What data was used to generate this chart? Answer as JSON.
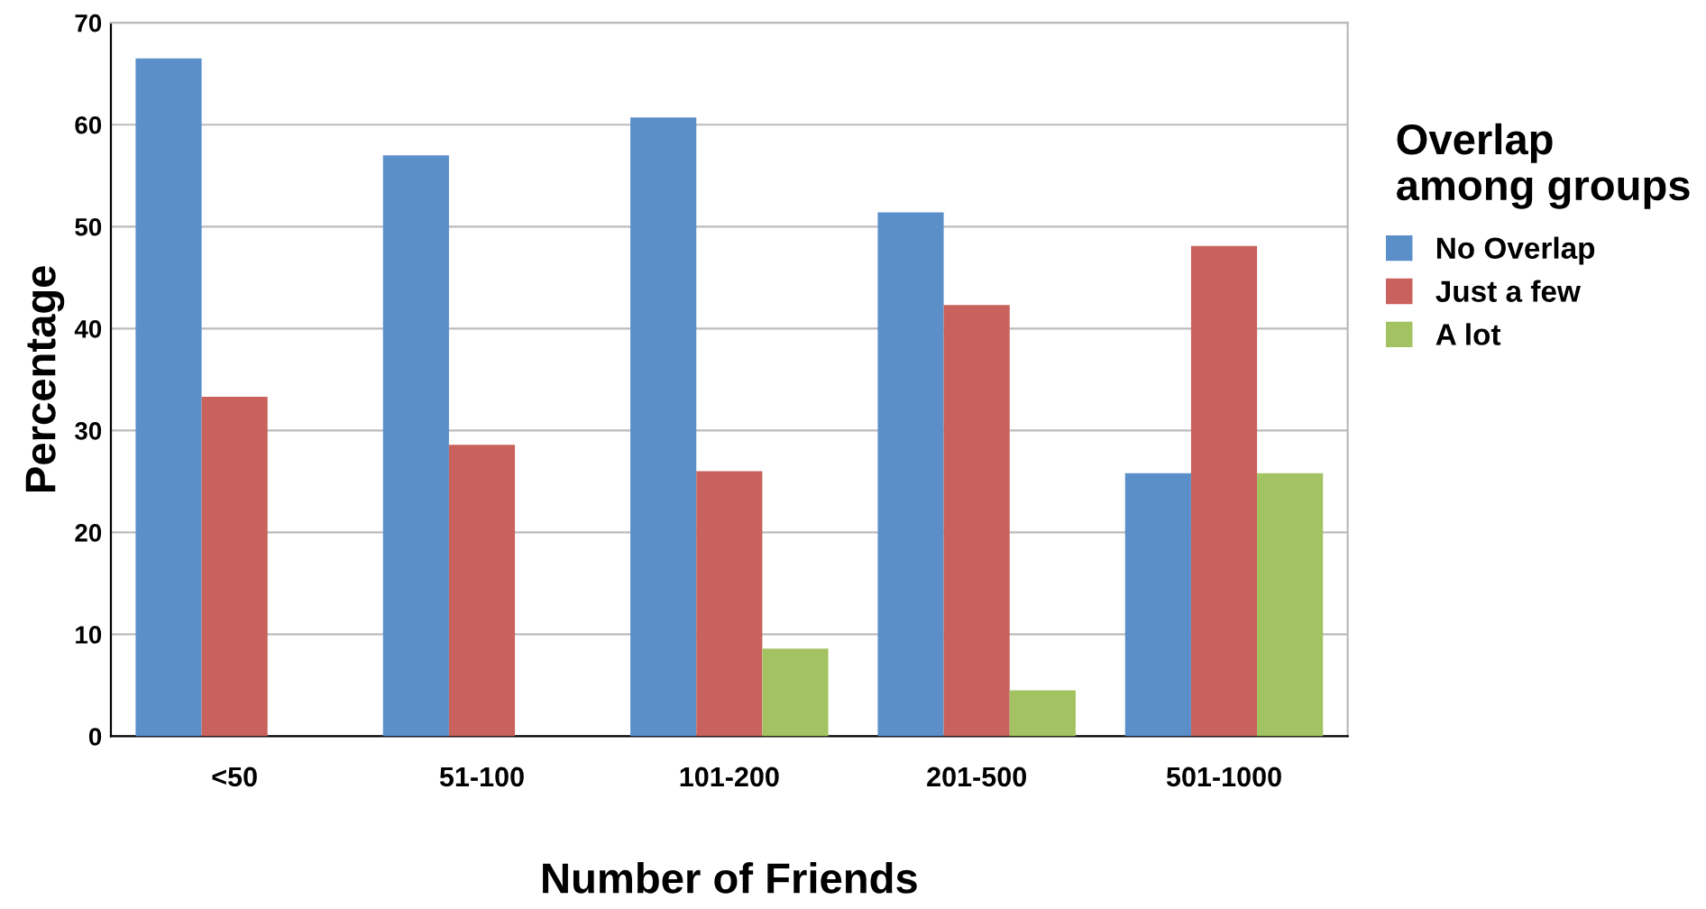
{
  "chart_data": {
    "type": "bar",
    "xlabel": "Number of Friends",
    "ylabel": "Percentage",
    "legend_title": "Overlap among groups",
    "categories": [
      "<50",
      "51-100",
      "101-200",
      "201-500",
      "501-1000"
    ],
    "series": [
      {
        "name": "No Overlap",
        "color": "#5b8fc9",
        "values": [
          66.5,
          57.0,
          60.7,
          51.4,
          25.8
        ]
      },
      {
        "name": "Just a few",
        "color": "#c9625c",
        "values": [
          33.3,
          28.6,
          26.0,
          42.3,
          48.1
        ]
      },
      {
        "name": "A lot",
        "color": "#a3c261",
        "values": [
          0,
          0,
          8.6,
          4.5,
          25.8
        ]
      }
    ],
    "ylim": [
      0,
      70
    ],
    "yticks": [
      0,
      10,
      20,
      30,
      40,
      50,
      60,
      70
    ],
    "grid": "y",
    "legend": "right"
  }
}
